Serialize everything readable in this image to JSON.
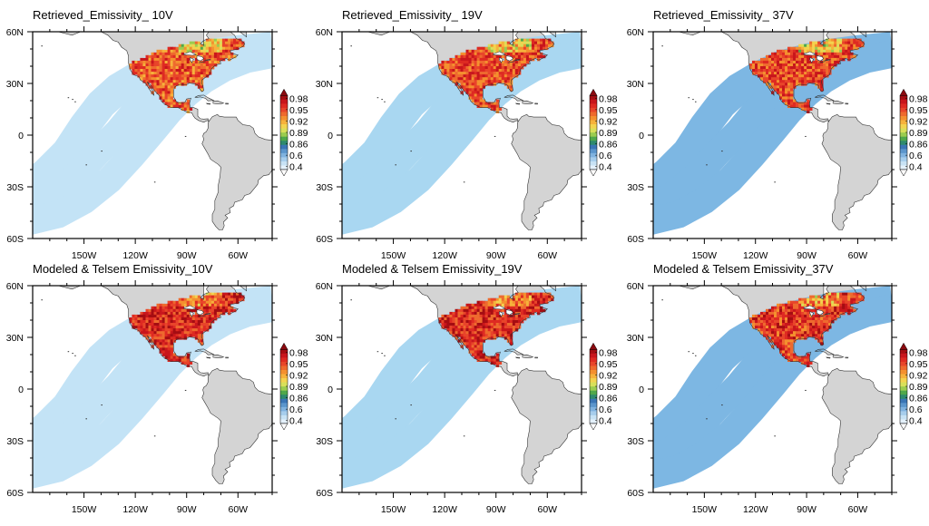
{
  "chart_data": [
    {
      "type": "heatmap",
      "title": "Retrieved_Emissivity_ 10V",
      "channel": "10V",
      "source": "Retrieved",
      "ocean_swath_level": 0.5,
      "land_swath_mean": 0.94,
      "xlim": [
        "180W",
        "40W"
      ],
      "ylim": [
        "60S",
        "60N"
      ]
    },
    {
      "type": "heatmap",
      "title": "Retrieved_Emissivity_ 19V",
      "channel": "19V",
      "source": "Retrieved",
      "ocean_swath_level": 0.55,
      "land_swath_mean": 0.945,
      "xlim": [
        "180W",
        "40W"
      ],
      "ylim": [
        "60S",
        "60N"
      ]
    },
    {
      "type": "heatmap",
      "title": "Retrieved_Emissivity_ 37V",
      "channel": "37V",
      "source": "Retrieved",
      "ocean_swath_level": 0.62,
      "land_swath_mean": 0.945,
      "xlim": [
        "180W",
        "40W"
      ],
      "ylim": [
        "60S",
        "60N"
      ]
    },
    {
      "type": "heatmap",
      "title": "Modeled & Telsem Emissivity_10V",
      "channel": "10V",
      "source": "Modeled & Telsem",
      "ocean_swath_level": 0.5,
      "land_swath_mean": 0.955,
      "xlim": [
        "180W",
        "40W"
      ],
      "ylim": [
        "60S",
        "60N"
      ]
    },
    {
      "type": "heatmap",
      "title": "Modeled & Telsem Emissivity_19V",
      "channel": "19V",
      "source": "Modeled & Telsem",
      "ocean_swath_level": 0.55,
      "land_swath_mean": 0.955,
      "xlim": [
        "180W",
        "40W"
      ],
      "ylim": [
        "60S",
        "60N"
      ]
    },
    {
      "type": "heatmap",
      "title": "Modeled & Telsem Emissivity_37V",
      "channel": "37V",
      "source": "Modeled & Telsem",
      "ocean_swath_level": 0.62,
      "land_swath_mean": 0.95,
      "xlim": [
        "180W",
        "40W"
      ],
      "ylim": [
        "60S",
        "60N"
      ]
    }
  ],
  "axes": {
    "x_ticks": [
      "150W",
      "120W",
      "90W",
      "60W"
    ],
    "x_tick_values": [
      -150,
      -120,
      -90,
      -60
    ],
    "y_ticks": [
      "60N",
      "30N",
      "0",
      "30S",
      "60S"
    ],
    "y_tick_values": [
      60,
      30,
      0,
      -30,
      -60
    ]
  },
  "colorbar": {
    "labels": [
      "0.98",
      "0.95",
      "0.92",
      "0.89",
      "0.86",
      "0.6",
      "0.4"
    ],
    "colors": [
      "#a50d12",
      "#c8161c",
      "#de2a22",
      "#e8452a",
      "#ee6a2e",
      "#f4902f",
      "#f6b23c",
      "#f3d34e",
      "#d8e05a",
      "#9bcc4f",
      "#4fa84a",
      "#2e8a6d",
      "#3a75b5",
      "#5b95cc",
      "#7fb2df",
      "#a6cdec",
      "#c7e2f5",
      "#e4f1fb"
    ],
    "over_color": "#8b0a10",
    "under_color": "#ffffff"
  },
  "colors": {
    "land": "#d4d4d4",
    "coast": "#333333",
    "frame": "#000000"
  }
}
